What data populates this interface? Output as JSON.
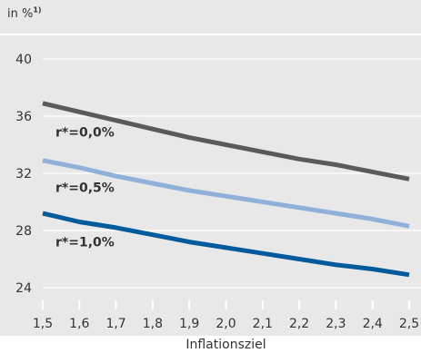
{
  "chart_data": {
    "type": "line",
    "unit_label": "in %",
    "unit_footnote": "1)",
    "xlabel": "Inflationsziel",
    "ylabel": "",
    "x": [
      1.5,
      1.6,
      1.7,
      1.8,
      1.9,
      2.0,
      2.1,
      2.2,
      2.3,
      2.4,
      2.5
    ],
    "x_tick_labels": [
      "1,5",
      "1,6",
      "1,7",
      "1,8",
      "1,9",
      "2,0",
      "2,1",
      "2,2",
      "2,3",
      "2,4",
      "2,5"
    ],
    "xlim": [
      1.5,
      2.5
    ],
    "ylim": [
      24,
      40
    ],
    "y_ticks": [
      24,
      28,
      32,
      36,
      40
    ],
    "y_tick_labels": [
      "24",
      "28",
      "32",
      "36",
      "40"
    ],
    "grid": "horizontal",
    "series": [
      {
        "name": "r*=0,0%",
        "color": "#5a5a5a",
        "values": [
          36.9,
          36.3,
          35.7,
          35.1,
          34.5,
          34.0,
          33.5,
          33.0,
          32.6,
          32.1,
          31.6
        ]
      },
      {
        "name": "r*=0,5%",
        "color": "#8fb0d9",
        "values": [
          32.9,
          32.4,
          31.8,
          31.3,
          30.8,
          30.4,
          30.0,
          29.6,
          29.2,
          28.8,
          28.3
        ]
      },
      {
        "name": "r*=1,0%",
        "color": "#005a9c",
        "values": [
          29.2,
          28.6,
          28.2,
          27.7,
          27.2,
          26.8,
          26.4,
          26.0,
          25.6,
          25.3,
          24.9
        ]
      }
    ]
  },
  "colors": {
    "plot_background": "#e8e8e8",
    "grid": "#ffffff",
    "text": "#333333"
  }
}
